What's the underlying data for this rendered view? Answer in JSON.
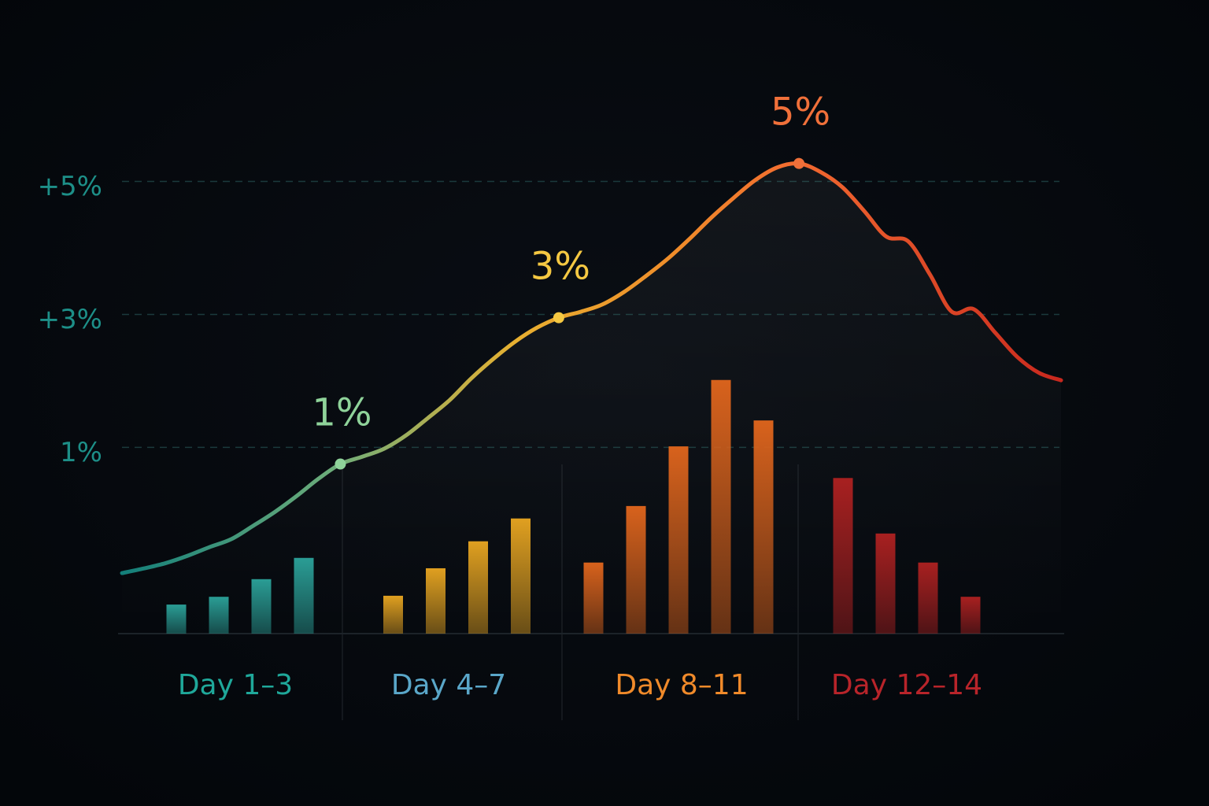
{
  "chart_data": {
    "type": "combo",
    "ylim": [
      -1.8,
      6
    ],
    "yticks": [
      {
        "value": 1,
        "label": "1%"
      },
      {
        "value": 3,
        "label": "+3%"
      },
      {
        "value": 5,
        "label": "+5%"
      }
    ],
    "y2lim": [
      0,
      10
    ],
    "grid": true,
    "ytick_color": "#1d8f88",
    "series": [
      {
        "name": "Day 1–3",
        "color": "#2a9d95",
        "label_color": "#1fa89a",
        "axis": "y2",
        "values": [
          0.56,
          0.71,
          1.05,
          1.46
        ]
      },
      {
        "name": "Day 4–7",
        "color": "#e0a020",
        "label_color": "#5aa7c9",
        "axis": "y2",
        "values": [
          0.73,
          1.26,
          1.78,
          2.22
        ]
      },
      {
        "name": "Day 8–11",
        "color": "#d8621c",
        "label_color": "#f08a2a",
        "axis": "y2",
        "values": [
          1.37,
          2.46,
          3.61,
          4.89,
          4.11
        ]
      },
      {
        "name": "Day 12–14",
        "color": "#a82020",
        "label_color": "#b8242a",
        "axis": "y2",
        "values": [
          3.0,
          1.93,
          1.37,
          0.71
        ]
      }
    ],
    "line": {
      "values": [
        -0.89,
        -0.82,
        -0.74,
        -0.63,
        -0.5,
        -0.38,
        -0.18,
        0.03,
        0.27,
        0.53,
        0.75,
        0.86,
        0.98,
        1.18,
        1.44,
        1.71,
        2.04,
        2.33,
        2.59,
        2.8,
        2.95,
        3.04,
        3.15,
        3.34,
        3.58,
        3.84,
        4.14,
        4.46,
        4.75,
        5.02,
        5.21,
        5.27,
        5.14,
        4.91,
        4.55,
        4.17,
        4.1,
        3.6,
        3.04,
        3.08,
        2.72,
        2.36,
        2.12,
        2.01
      ],
      "value_labels": [
        null,
        null,
        null,
        null,
        null,
        null,
        null,
        null,
        null,
        null,
        "1%",
        null,
        null,
        null,
        null,
        null,
        null,
        null,
        null,
        null,
        "3%",
        null,
        null,
        null,
        null,
        null,
        null,
        null,
        null,
        null,
        null,
        "5%",
        null,
        null,
        null,
        null,
        null,
        null,
        null,
        null,
        null,
        null,
        null,
        null
      ],
      "value_label_colors": {
        "1%": "#8fd39a",
        "3%": "#f5c842",
        "5%": "#f0703a"
      }
    }
  }
}
